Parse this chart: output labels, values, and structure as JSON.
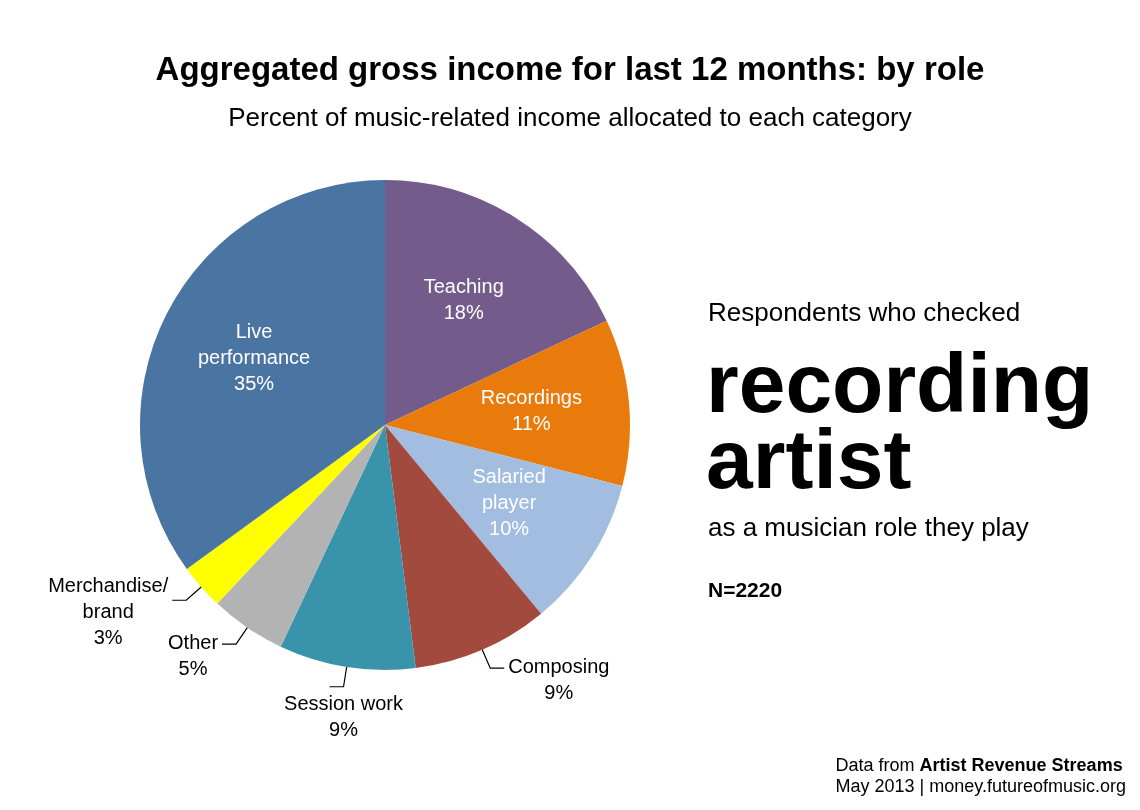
{
  "chart_data": {
    "type": "pie",
    "title": "Aggregated gross income for last 12 months: by role",
    "subtitle": "Percent of music-related income allocated to each category",
    "categories": [
      "Teaching",
      "Recordings",
      "Salaried player",
      "Composing",
      "Session work",
      "Other",
      "Merchandise/brand",
      "Live performance"
    ],
    "values": [
      18,
      11,
      10,
      9,
      9,
      5,
      3,
      35
    ],
    "value_labels": [
      "18%",
      "11%",
      "10%",
      "9%",
      "9%",
      "5%",
      "3%",
      "35%"
    ],
    "colors": [
      "#735b8c",
      "#e87b0c",
      "#a3bde0",
      "#a34a3f",
      "#3994ab",
      "#b3b3b3",
      "#ffff00",
      "#4a74a2"
    ],
    "legend": false,
    "annotations": [
      "Respondents who checked",
      "recording artist",
      "as a musician role they play",
      "N=2220",
      "Data from",
      "Artist Revenue Streams",
      "May 2013 | money.futureofmusic.org"
    ]
  }
}
